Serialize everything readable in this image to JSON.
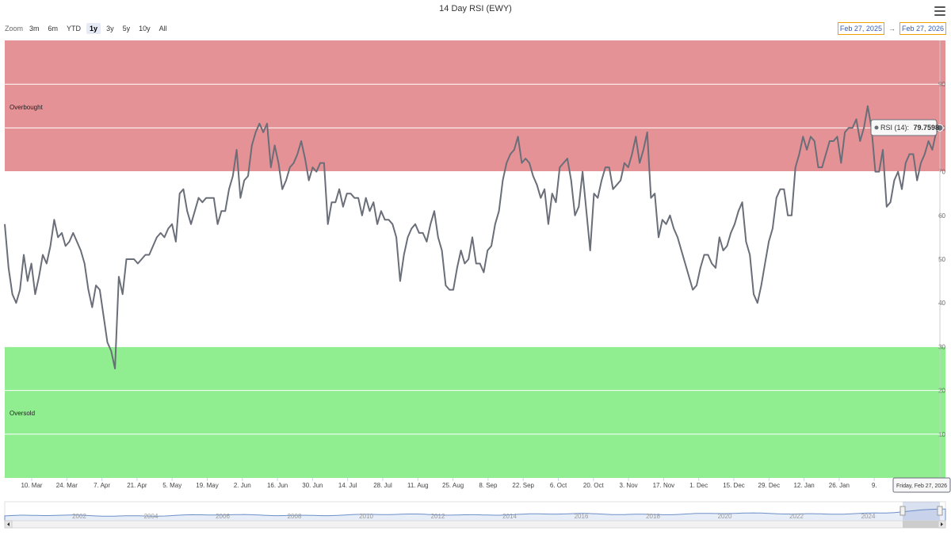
{
  "title": "14 Day RSI (EWY)",
  "zoom": {
    "label": "Zoom",
    "buttons": [
      "3m",
      "6m",
      "YTD",
      "1y",
      "3y",
      "5y",
      "10y",
      "All"
    ],
    "active": "1y"
  },
  "range": {
    "from": "Feb 27, 2025",
    "arrow": "→",
    "to": "Feb 27, 2026"
  },
  "bands": {
    "overbought": "Overbought",
    "oversold": "Oversold"
  },
  "colors": {
    "overbought": "#e59296",
    "oversold": "#90ee90",
    "line": "#6a6e78",
    "grid": "#ffffff"
  },
  "tooltip": {
    "series": "RSI (14):",
    "value": "79.7598"
  },
  "crosshair_label": "Friday, Feb 27, 2026",
  "navigator": {
    "years": [
      "2002",
      "2004",
      "2006",
      "2008",
      "2010",
      "2012",
      "2014",
      "2016",
      "2018",
      "2020",
      "2022",
      "2024"
    ]
  },
  "chart_data": {
    "type": "line",
    "title": "14 Day RSI (EWY)",
    "xlabel": "",
    "ylabel": "",
    "ylim": [
      0,
      100
    ],
    "yticks": [
      10,
      20,
      30,
      40,
      50,
      60,
      70,
      80,
      90
    ],
    "xticks": [
      "10. Mar",
      "24. Mar",
      "7. Apr",
      "21. Apr",
      "5. May",
      "19. May",
      "2. Jun",
      "16. Jun",
      "30. Jun",
      "14. Jul",
      "28. Jul",
      "11. Aug",
      "25. Aug",
      "8. Sep",
      "22. Sep",
      "6. Oct",
      "20. Oct",
      "3. Nov",
      "17. Nov",
      "1. Dec",
      "15. Dec",
      "29. Dec",
      "12. Jan",
      "26. Jan",
      "9."
    ],
    "bands": [
      {
        "from": 70,
        "to": 100,
        "label": "Overbought"
      },
      {
        "from": 0,
        "to": 30,
        "label": "Oversold"
      }
    ],
    "grid": true,
    "series": [
      {
        "name": "RSI (14)",
        "x_start": "2025-02-27",
        "step": "trading day",
        "values": [
          58,
          48,
          42,
          40,
          43,
          51,
          45,
          49,
          42,
          46,
          51,
          49,
          53,
          59,
          55,
          56,
          53,
          54,
          56,
          54,
          52,
          49,
          43,
          39,
          44,
          43,
          37,
          31,
          29,
          25,
          46,
          42,
          50,
          50,
          50,
          49,
          50,
          51,
          51,
          53,
          55,
          56,
          55,
          57,
          58,
          54,
          65,
          66,
          61,
          58,
          61,
          64,
          63,
          64,
          64,
          64,
          58,
          61,
          61,
          66,
          69,
          75,
          64,
          68,
          69,
          76,
          79,
          81,
          79,
          81,
          71,
          76,
          72,
          66,
          68,
          71,
          72,
          74,
          77,
          73,
          68,
          71,
          70,
          72,
          72,
          58,
          63,
          63,
          66,
          62,
          65,
          65,
          64,
          64,
          60,
          64,
          61,
          63,
          58,
          61,
          59,
          59,
          58,
          55,
          45,
          51,
          55,
          57,
          58,
          56,
          56,
          54,
          58,
          61,
          55,
          52,
          44,
          43,
          43,
          48,
          52,
          49,
          50,
          55,
          49,
          49,
          47,
          52,
          53,
          58,
          61,
          68,
          72,
          74,
          75,
          78,
          72,
          73,
          72,
          69,
          67,
          64,
          66,
          58,
          65,
          63,
          71,
          72,
          73,
          68,
          60,
          62,
          70,
          61,
          52,
          65,
          64,
          68,
          71,
          71,
          66,
          67,
          68,
          72,
          71,
          74,
          78,
          72,
          75,
          79,
          64,
          65,
          55,
          59,
          58,
          60,
          57,
          55,
          52,
          49,
          46,
          43,
          44,
          48,
          51,
          51,
          49,
          48,
          55,
          52,
          53,
          56,
          58,
          61,
          63,
          54,
          51,
          42,
          40,
          44,
          49,
          54,
          57,
          64,
          66,
          66,
          60,
          60,
          71,
          74,
          78,
          75,
          78,
          77,
          71,
          71,
          74,
          77,
          77,
          78,
          72,
          79,
          80,
          80,
          82,
          77,
          80,
          85,
          80,
          70,
          70,
          75,
          62,
          63,
          68,
          70,
          66,
          72,
          74,
          74,
          68,
          72,
          74,
          77,
          75,
          79,
          80
        ]
      }
    ]
  }
}
